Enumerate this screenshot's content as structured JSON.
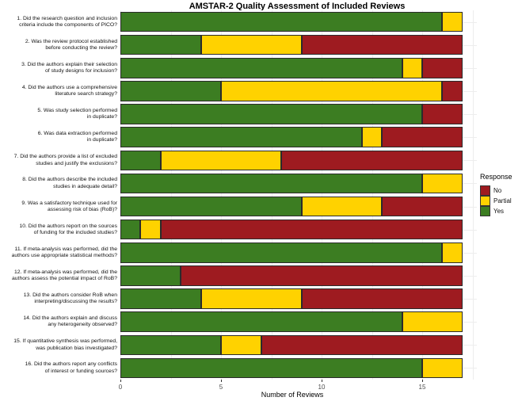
{
  "chart_data": {
    "type": "bar",
    "orientation": "horizontal",
    "stacked": true,
    "title": "AMSTAR-2 Quality Assessment of Included Reviews",
    "xlabel": "Number of Reviews",
    "xlim": [
      0,
      17.7
    ],
    "xticks": [
      0,
      5,
      10,
      15
    ],
    "grid": true,
    "legend_title": "Response",
    "legend_position": "right",
    "total_reviews_per_bar": 17,
    "stack_order": [
      "Yes",
      "Partial",
      "No"
    ],
    "categories": [
      "1. Did the research question and inclusion\ncriteria include the components of PICO?",
      "2. Was the review protocol established\nbefore conducting the review?",
      "3. Did the authors explain their selection\nof study designs for inclusion?",
      "4. Did the authors use a comprehensive\nliterature search strategy?",
      "5. Was study selection performed\nin duplicate?",
      "6. Was data extraction performed\nin duplicate?",
      "7. Did the authors provide a list of excluded\nstudies and justify the exclusions?",
      "8. Did the authors describe the included\nstudies in adequate detail?",
      "9. Was a satisfactory technique used for\nassessing risk of bias (RoB)?",
      "10. Did the authors report on the sources\nof funding for the included studies?",
      "11. If meta-analysis was performed, did the\nauthors use appropriate statistical methods?",
      "12. If meta-analysis was performed, did the\nauthors assess the potential impact of RoB?",
      "13. Did the authors consider RoB when\ninterpreting/discussing the results?",
      "14. Did the authors explain and discuss\nany heterogeneity observed?",
      "15. If quantitative synthesis was performed,\nwas publication bias investigated?",
      "16. Did the authors report any conflicts\nof interest or funding sources?"
    ],
    "series": [
      {
        "name": "No",
        "color": "#9E1B20",
        "values": [
          0,
          8,
          2,
          1,
          2,
          4,
          9,
          0,
          4,
          15,
          0,
          14,
          8,
          0,
          10,
          0
        ]
      },
      {
        "name": "Partial",
        "color": "#FFD200",
        "values": [
          1,
          5,
          1,
          11,
          0,
          1,
          6,
          2,
          4,
          1,
          1,
          0,
          5,
          3,
          2,
          2
        ]
      },
      {
        "name": "Yes",
        "color": "#3C7D22",
        "values": [
          16,
          4,
          14,
          5,
          15,
          12,
          2,
          15,
          9,
          1,
          16,
          3,
          4,
          14,
          5,
          15
        ]
      }
    ],
    "colors": {
      "no": "#9E1B20",
      "partial": "#FFD200",
      "yes": "#3C7D22"
    }
  }
}
